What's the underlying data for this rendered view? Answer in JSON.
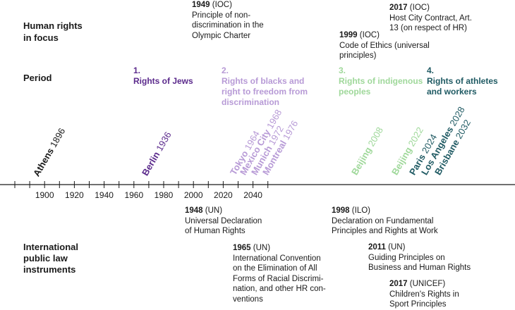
{
  "rows": {
    "focus": "Human rights\nin focus",
    "period": "Period",
    "instruments": "International\npublic law\ninstruments"
  },
  "top_notes": [
    {
      "year": "1949",
      "org": " (IOC)",
      "text": "Principle of non-\ndiscrimination in the\nOlympic Charter"
    },
    {
      "year": "1999",
      "org": " (IOC)",
      "text": "Code of Ethics (universal\nprinciples)"
    },
    {
      "year": "2017",
      "org": " (IOC)",
      "text": "Host City Contract, Art.\n13 (on respect of HR)"
    }
  ],
  "periods": [
    {
      "num": "1.",
      "text": "Rights of Jews",
      "color": "#5b2a8c"
    },
    {
      "num": "2.",
      "text": "Rights of blacks and\nright to freedom from\ndiscrimination",
      "color": "#b79ad6"
    },
    {
      "num": "3.",
      "text": "Rights of indigenous\npeoples",
      "color": "#9fd89a"
    },
    {
      "num": "4.",
      "text": "Rights of athletes\nand workers",
      "color": "#1f5a63"
    }
  ],
  "hosts": [
    {
      "city": "Athens",
      "year": "1896",
      "color": "#1a1a1a"
    },
    {
      "city": "Berlin",
      "year": "1936",
      "color": "#5b2a8c"
    },
    {
      "city": "Tokyo",
      "year": "1964",
      "color": "#b79ad6"
    },
    {
      "city": "Mexico City",
      "year": "1968",
      "color": "#b79ad6"
    },
    {
      "city": "Munich",
      "year": "1972",
      "color": "#b79ad6"
    },
    {
      "city": "Montreal",
      "year": "1976",
      "color": "#b79ad6"
    },
    {
      "city": "Beijing",
      "year": "2008",
      "color": "#9fd89a"
    },
    {
      "city": "Beijing",
      "year": "2022",
      "color": "#9fd89a"
    },
    {
      "city": "Paris",
      "year": "2024",
      "color": "#1f5a63"
    },
    {
      "city": "Los Angeles",
      "year": "2028",
      "color": "#1f5a63"
    },
    {
      "city": "Brisbane",
      "year": "2032",
      "color": "#1f5a63"
    }
  ],
  "axis": {
    "labels": [
      "1900",
      "1920",
      "1940",
      "1960",
      "1980",
      "2000",
      "2020",
      "2040"
    ]
  },
  "bottom_notes": [
    {
      "year": "1948",
      "org": " (UN)",
      "text": "Universal Declaration\nof Human Rights"
    },
    {
      "year": "1965",
      "org": " (UN)",
      "text": "International Convention\non the Elimination of All\nForms of Racial Discrimi-\nnation, and other HR con-\nventions"
    },
    {
      "year": "1998",
      "org": " (ILO)",
      "text": "Declaration on Fundamental\nPrinciples and Rights at Work"
    },
    {
      "year": "2011",
      "org": " (UN)",
      "text": "Guiding Principles on\nBusiness and Human Rights"
    },
    {
      "year": "2017",
      "org": " (UNICEF)",
      "text": "Children's Rights in\nSport Principles"
    }
  ]
}
